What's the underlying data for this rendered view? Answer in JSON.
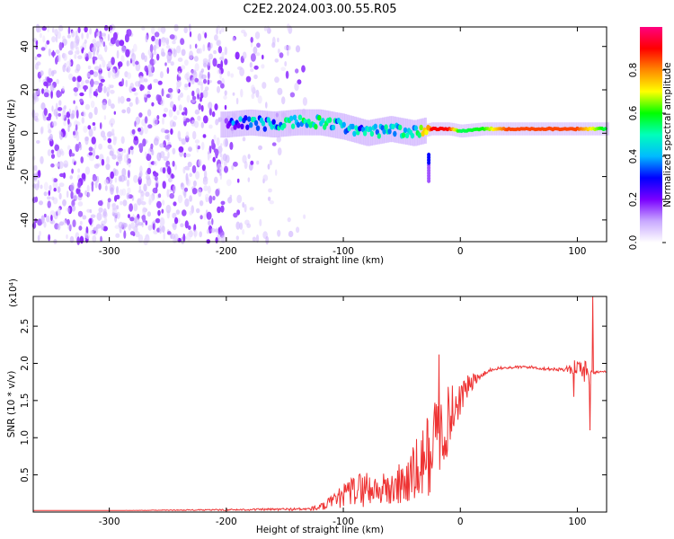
{
  "title": "C2E2.2024.003.00.55.R05",
  "chart_data": [
    {
      "type": "heatmap",
      "xlabel": "Height of straight line (km)",
      "ylabel": "Frequency (Hz)",
      "xlim": [
        -365,
        125
      ],
      "ylim": [
        -50,
        49
      ],
      "xticks": [
        -300,
        -200,
        -100,
        0,
        100
      ],
      "yticks": [
        -40,
        -20,
        0,
        20,
        40
      ],
      "colorbar": {
        "label": "Normalized spectral amplitude",
        "range": [
          0,
          1
        ],
        "ticks": [
          "0.0",
          "0.2",
          "0.4",
          "0.6",
          "0.8"
        ],
        "colors": [
          "#ffffff",
          "#c8a8ff",
          "#7a00ff",
          "#0000ff",
          "#00bbff",
          "#00ffbb",
          "#00ff00",
          "#ffff00",
          "#ff8800",
          "#ff0000",
          "#ff0080"
        ]
      },
      "features": {
        "noise_region_x": [
          -365,
          -130
        ],
        "ridge": {
          "x": [
            -200,
            -180,
            -160,
            -140,
            -120,
            -100,
            -80,
            -60,
            -40,
            -25,
            -10,
            0,
            20,
            40,
            60,
            80,
            100,
            125
          ],
          "freq": [
            4,
            5,
            4,
            5,
            5,
            3,
            0,
            2,
            0,
            2,
            2,
            1,
            2,
            2,
            2,
            2,
            2,
            2
          ],
          "level": [
            0.25,
            0.4,
            0.4,
            0.45,
            0.5,
            0.4,
            0.4,
            0.45,
            0.45,
            0.9,
            0.9,
            0.55,
            0.6,
            0.85,
            0.85,
            0.85,
            0.85,
            0.55
          ]
        },
        "tail": {
          "x": -27,
          "freq_range": [
            -22,
            -10
          ]
        }
      }
    },
    {
      "type": "line",
      "xlabel": "Height of straight line (km)",
      "ylabel": "SNR (10 * v/v)",
      "y_multiplier": "(x10⁴)",
      "xlim": [
        -365,
        125
      ],
      "ylim": [
        0,
        2.9
      ],
      "xticks": [
        -300,
        -200,
        -100,
        0,
        100
      ],
      "yticks": [
        "0.5",
        "1.0",
        "1.5",
        "2.0",
        "2.5"
      ],
      "line_color": "#ee3333",
      "series": [
        {
          "x": [
            -365,
            -300,
            -200,
            -130,
            -120,
            -110,
            -100,
            -90,
            -80,
            -70,
            -60,
            -50,
            -40,
            -30,
            -25,
            -20,
            -15,
            -10,
            -5,
            0,
            5,
            10,
            15,
            20,
            25,
            30,
            40,
            50,
            60,
            70,
            80,
            90,
            95,
            100,
            105,
            108,
            110,
            112,
            115,
            120,
            125
          ],
          "y": [
            0.02,
            0.02,
            0.03,
            0.04,
            0.06,
            0.12,
            0.22,
            0.3,
            0.32,
            0.3,
            0.3,
            0.38,
            0.48,
            0.7,
            0.85,
            1.0,
            1.1,
            1.25,
            1.4,
            1.55,
            1.65,
            1.75,
            1.8,
            1.85,
            1.9,
            1.93,
            1.94,
            1.95,
            1.95,
            1.93,
            1.92,
            1.92,
            1.93,
            1.95,
            1.92,
            1.85,
            1.9,
            1.88,
            1.88,
            1.89,
            1.89
          ],
          "noise": [
            0.0,
            0.0,
            0.01,
            0.02,
            0.05,
            0.1,
            0.16,
            0.22,
            0.26,
            0.2,
            0.26,
            0.32,
            0.42,
            0.55,
            0.62,
            0.65,
            0.55,
            0.45,
            0.35,
            0.25,
            0.18,
            0.12,
            0.06,
            0.04,
            0.03,
            0.02,
            0.02,
            0.02,
            0.02,
            0.02,
            0.02,
            0.03,
            0.08,
            0.12,
            0.1,
            0.3,
            0.25,
            0.06,
            0.02,
            0.01,
            0.01
          ]
        }
      ],
      "spikes": [
        {
          "x": -18,
          "y": 2.12
        },
        {
          "x": -16,
          "y": 1.2
        },
        {
          "x": 97,
          "y": 1.55
        },
        {
          "x": 111,
          "y": 1.1
        },
        {
          "x": 113,
          "y": 2.9
        }
      ]
    }
  ]
}
